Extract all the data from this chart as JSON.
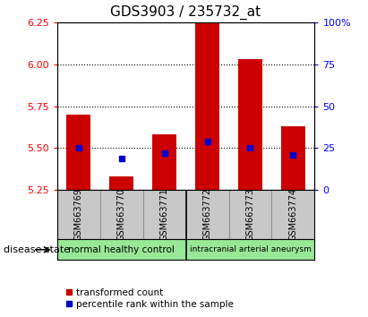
{
  "title": "GDS3903 / 235732_at",
  "samples": [
    "GSM663769",
    "GSM663770",
    "GSM663771",
    "GSM663772",
    "GSM663773",
    "GSM663774"
  ],
  "group_labels": [
    "normal healthy control",
    "intracranial arterial aneurysm"
  ],
  "bar_bottom": 5.25,
  "bar_tops": [
    5.7,
    5.33,
    5.58,
    6.25,
    6.03,
    5.63
  ],
  "percentile_values": [
    5.5,
    5.44,
    5.47,
    5.54,
    5.5,
    5.46
  ],
  "ylim_left": [
    5.25,
    6.25
  ],
  "ylim_right": [
    0,
    100
  ],
  "yticks_left": [
    5.25,
    5.5,
    5.75,
    6.0,
    6.25
  ],
  "yticks_right": [
    0,
    25,
    50,
    75,
    100
  ],
  "bar_color": "#CC0000",
  "percentile_color": "#0000CC",
  "legend_bar_label": "transformed count",
  "legend_pct_label": "percentile rank within the sample",
  "xlabel_bg": "#C8C8C8",
  "group_bg_color": "#98E898",
  "bar_width": 0.55,
  "grid_yticks": [
    5.5,
    5.75,
    6.0
  ],
  "disease_state_label": "disease state"
}
